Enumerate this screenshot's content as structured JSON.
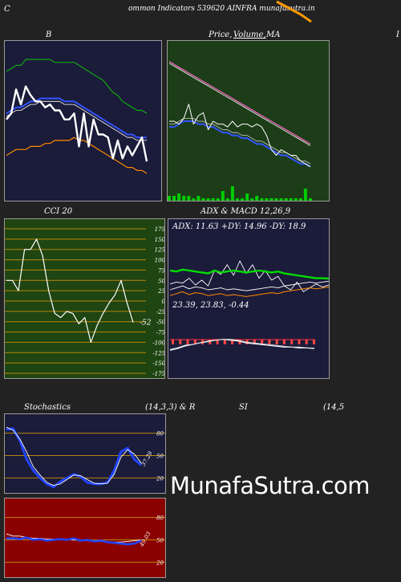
{
  "header": {
    "left_letter": "C",
    "title": "ommon  Indicators 539620  AINFRA munafasutra.in"
  },
  "panels": {
    "bollinger": {
      "title": "B"
    },
    "price": {
      "title_a": "Price,",
      "title_b": "Volume,",
      "title_c": "MA",
      "cut_letter": "I"
    },
    "cci": {
      "title": "CCI 20",
      "readout": "-52"
    },
    "adx_macd": {
      "title": "ADX  & MACD 12,26,9",
      "adx_readout": "ADX: 11.63  +DY: 14.96  -DY: 18.9",
      "macd_readout": "23.39,  23.83,  -0.44"
    },
    "stochastics": {
      "title_left": "Stochastics",
      "title_mid": "(14,3,3) & R",
      "readout": "37.29"
    },
    "rsi": {
      "title_left": "SI",
      "title_right": "(14,5",
      "readout": "49.03"
    }
  },
  "watermark": "MunafaSutra.com",
  "colors": {
    "page_bg": "#222222",
    "navy_panel": "#1b1b3a",
    "green_panel": "#1d3d18",
    "cci_panel": "#1f4512",
    "rsi_panel": "#8b0000",
    "orange": "#ff9900"
  },
  "chart_data": [
    {
      "id": "bollinger",
      "type": "line",
      "title": "B",
      "series": [
        {
          "values": [
            92,
            93,
            94,
            94,
            96,
            96,
            96,
            96,
            96,
            96,
            95,
            95,
            95,
            95,
            95,
            94,
            93,
            92,
            91,
            90,
            89,
            87,
            85,
            84,
            82,
            81,
            80,
            79,
            79,
            78
          ]
        },
        {
          "values": [
            78,
            79,
            80,
            80,
            81,
            82,
            82,
            83,
            83,
            83,
            83,
            83,
            82,
            82,
            82,
            81,
            80,
            79,
            78,
            77,
            76,
            75,
            74,
            73,
            72,
            71,
            71,
            70,
            70,
            70
          ]
        },
        {
          "values": [
            77,
            78,
            79,
            79,
            80,
            81,
            81,
            82,
            82,
            82,
            82,
            82,
            81,
            81,
            81,
            80,
            79,
            78,
            77,
            76,
            75,
            74,
            73,
            72,
            71,
            70,
            70,
            69,
            69,
            69
          ]
        },
        {
          "values": [
            64,
            65,
            66,
            66,
            66,
            67,
            67,
            67,
            68,
            68,
            69,
            69,
            69,
            69,
            70,
            69,
            69,
            68,
            67,
            66,
            65,
            64,
            63,
            62,
            61,
            60,
            60,
            59,
            59,
            58
          ]
        },
        {
          "values": [
            76,
            78,
            86,
            81,
            87,
            84,
            82,
            82,
            80,
            81,
            79,
            79,
            76,
            76,
            78,
            67,
            78,
            67,
            76,
            71,
            71,
            70,
            63,
            69,
            63,
            67,
            64,
            67,
            70,
            62
          ]
        }
      ]
    },
    {
      "id": "price",
      "type": "line",
      "series": [
        {
          "values": [
            95,
            94,
            93,
            92,
            91,
            90,
            89,
            88,
            87,
            86,
            85,
            84,
            83,
            82,
            81,
            80,
            79,
            78,
            77,
            76,
            75,
            74,
            73,
            72,
            71,
            70,
            69,
            68,
            67,
            66
          ]
        },
        {
          "values": [
            72,
            72,
            73,
            74,
            74,
            74,
            73,
            73,
            72,
            72,
            71,
            70,
            70,
            69,
            69,
            68,
            68,
            67,
            66,
            66,
            65,
            64,
            63,
            62,
            62,
            61,
            60,
            59,
            59,
            58
          ]
        },
        {
          "values": [
            74,
            74,
            73,
            75,
            80,
            73,
            76,
            77,
            71,
            74,
            73,
            73,
            72,
            74,
            72,
            73,
            73,
            72,
            73,
            72,
            69,
            64,
            62,
            64,
            63,
            62,
            62,
            60,
            59,
            58
          ]
        },
        {
          "values": [
            2,
            2,
            3,
            2,
            2,
            1,
            2,
            1,
            1,
            1,
            1,
            4,
            1,
            6,
            1,
            1,
            3,
            1,
            2,
            1,
            1,
            1,
            1,
            1,
            1,
            1,
            1,
            1,
            5,
            1
          ]
        }
      ]
    },
    {
      "id": "cci",
      "type": "line",
      "title": "CCI 20",
      "ylim": [
        -175,
        175
      ],
      "yticks": [
        175,
        150,
        125,
        100,
        75,
        50,
        25,
        0,
        -25,
        -50,
        -75,
        -100,
        -125,
        -150,
        -175
      ],
      "series": [
        {
          "values": [
            50,
            50,
            25,
            125,
            125,
            150,
            110,
            25,
            -30,
            -40,
            -25,
            -30,
            -55,
            -40,
            -100,
            -60,
            -30,
            -5,
            15,
            50,
            -5,
            -52
          ]
        }
      ]
    },
    {
      "id": "adx",
      "type": "line",
      "series": [
        {
          "name": "ADX",
          "values": [
            20,
            19,
            21,
            20,
            19,
            18,
            17,
            20,
            18,
            19,
            20,
            19,
            18,
            19,
            20,
            19,
            18,
            19,
            17,
            16,
            15,
            14,
            13,
            12,
            12,
            11.63
          ]
        },
        {
          "name": "+DY",
          "values": [
            16,
            18,
            17,
            22,
            15,
            20,
            14,
            30,
            26,
            36,
            25,
            40,
            27,
            36,
            22,
            30,
            20,
            24,
            14,
            10,
            18,
            8,
            12,
            16,
            13,
            14.96
          ]
        },
        {
          "name": "-DY",
          "values": [
            10,
            12,
            14,
            11,
            13,
            12,
            10,
            11,
            12,
            10,
            11,
            10,
            9,
            10,
            11,
            12,
            13,
            12,
            14,
            15,
            16,
            17,
            18,
            17,
            18,
            18.9
          ]
        }
      ]
    },
    {
      "id": "macd",
      "type": "line",
      "series": [
        {
          "values": [
            22,
            24,
            27,
            28,
            30,
            32,
            33,
            34,
            33,
            32,
            30,
            29,
            28,
            27,
            26,
            25,
            25,
            24,
            24,
            23.39
          ]
        },
        {
          "values": [
            21,
            23,
            26,
            28,
            30,
            31,
            33,
            34,
            34,
            33,
            31,
            30,
            29,
            28,
            27,
            26,
            25,
            25,
            24,
            23.83
          ]
        },
        {
          "values": [
            1,
            1,
            1,
            0,
            0,
            1,
            0,
            0,
            -1,
            -1,
            -1,
            -1,
            -1,
            -1,
            -1,
            -1,
            0,
            -1,
            0,
            -0.44
          ]
        }
      ]
    },
    {
      "id": "stochastics",
      "type": "line",
      "ylim": [
        0,
        100
      ],
      "yticks": [
        80,
        50,
        20
      ],
      "series": [
        {
          "values": [
            85,
            86,
            70,
            45,
            30,
            20,
            12,
            8,
            15,
            20,
            25,
            22,
            14,
            12,
            12,
            14,
            30,
            55,
            60,
            45,
            37.29
          ]
        },
        {
          "values": [
            88,
            84,
            72,
            55,
            35,
            24,
            14,
            10,
            12,
            18,
            24,
            23,
            18,
            13,
            12,
            13,
            25,
            48,
            58,
            52,
            40
          ]
        }
      ]
    },
    {
      "id": "rsi",
      "type": "line",
      "ylim": [
        0,
        100
      ],
      "yticks": [
        80,
        50,
        20
      ],
      "series": [
        {
          "values": [
            52,
            52,
            51,
            53,
            50,
            51,
            49,
            50,
            51,
            50,
            52,
            49,
            50,
            48,
            49,
            47,
            46,
            45,
            44,
            45,
            49.03
          ]
        },
        {
          "values": [
            58,
            55,
            55,
            53,
            52,
            52,
            51,
            51,
            50,
            50,
            50,
            49,
            49,
            48,
            48,
            47,
            47,
            47,
            48,
            49,
            50
          ]
        }
      ]
    }
  ]
}
